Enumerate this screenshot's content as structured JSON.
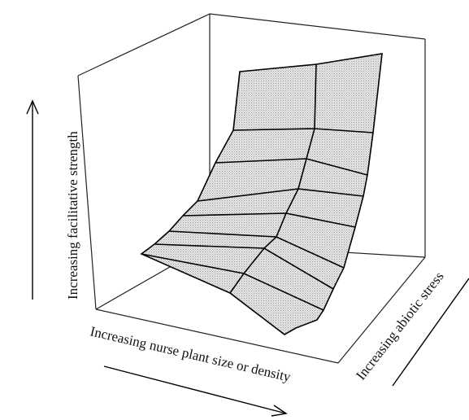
{
  "labels": {
    "vertical_axis": "Increasing facilitative strength",
    "front_axis": "Increasing nurse plant size or density",
    "depth_axis": "Increasing abiotic stress"
  },
  "colors": {
    "surface_fill": "#dedede",
    "lines": "#000000",
    "background": "#ffffff"
  }
}
